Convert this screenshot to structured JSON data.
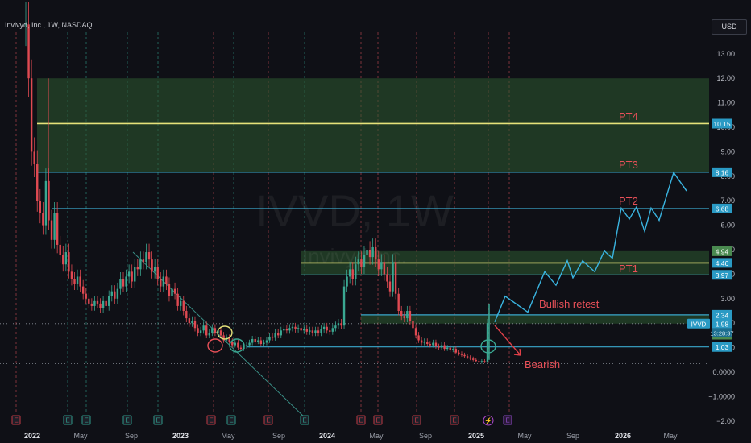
{
  "header": {
    "symbol_title": "Invivyd, Inc., 1W, NASDAQ",
    "currency": "USD"
  },
  "watermark": {
    "ticker": "IVVD, 1W",
    "company": "Invivyd Inc."
  },
  "colors": {
    "background": "#0f1016",
    "grid_v_red": "#c44a55",
    "grid_v_teal": "#2f9a8a",
    "up_candle": "#3aa892",
    "down_candle": "#e04a52",
    "zone_fill": "#2e5a32",
    "line_cyan": "#3aa8cc",
    "line_yellow": "#e6e27a",
    "projection": "#3ab4e0",
    "annotation_red": "#e85058",
    "arrow_red": "#e04048"
  },
  "chart_data": {
    "type": "candlestick",
    "title": "IVVD, 1W",
    "y_axis": {
      "ticks": [
        13.0,
        12.0,
        11.0,
        10.0,
        9.0,
        8.0,
        7.0,
        6.0,
        5.0,
        4.0,
        3.0,
        2.0,
        1.0,
        0.0,
        -1.0,
        -2.0
      ],
      "tick_labels": [
        "13.00",
        "12.00",
        "11.00",
        "10.00",
        "9.00",
        "8.00",
        "7.00",
        "6.00",
        "5.00",
        "4.00",
        "3.00",
        "2.00",
        "1.00",
        "0.0000",
        "−1.0000",
        "−2.00"
      ],
      "range": [
        -2.0,
        14.4
      ],
      "position": "right"
    },
    "x_axis": {
      "labels": [
        "2022",
        "May",
        "Sep",
        "2023",
        "May",
        "Sep",
        "2024",
        "May",
        "Sep",
        "2025",
        "May",
        "Sep",
        "2026",
        "May"
      ],
      "bold_labels": [
        "2022",
        "2023",
        "2024",
        "2025",
        "2026"
      ]
    },
    "price_badges": [
      {
        "value": 10.15,
        "label": "10.15"
      },
      {
        "value": 8.16,
        "label": "8.16"
      },
      {
        "value": 6.68,
        "label": "6.68"
      },
      {
        "value": 4.94,
        "label": "4.94"
      },
      {
        "value": 4.46,
        "label": "4.46"
      },
      {
        "value": 3.97,
        "label": "3.97"
      },
      {
        "value": 2.34,
        "label": "2.34"
      },
      {
        "value": 1.98,
        "label": "1.98"
      },
      {
        "value": 1.53,
        "label": "1.53"
      },
      {
        "value": 1.03,
        "label": "1.03"
      }
    ],
    "last_price": {
      "value": 1.98,
      "label": "1.98",
      "ticker": "IVVD",
      "countdown": "13:28:37"
    },
    "horizontal_lines": [
      {
        "value": 10.15,
        "color": "yellow"
      },
      {
        "value": 8.16,
        "color": "cyan"
      },
      {
        "value": 6.68,
        "color": "cyan"
      },
      {
        "value": 4.46,
        "color": "yellow"
      },
      {
        "value": 3.97,
        "color": "cyan"
      },
      {
        "value": 2.34,
        "color": "cyan"
      },
      {
        "value": 1.03,
        "color": "cyan"
      }
    ],
    "zones": [
      {
        "from": 8.16,
        "to": 12.0
      },
      {
        "from": 3.97,
        "to": 4.94
      },
      {
        "from": 1.98,
        "to": 2.34
      }
    ],
    "annotations": [
      {
        "text": "PT4",
        "value": 10.15
      },
      {
        "text": "PT3",
        "value": 8.16
      },
      {
        "text": "PT2",
        "value": 6.68
      },
      {
        "text": "PT1",
        "value": 3.97
      },
      {
        "text": "Bullish retest",
        "value": 2.34
      },
      {
        "text": "Bearish",
        "value": 0.35
      }
    ],
    "projection_path": [
      2.05,
      3.1,
      2.45,
      4.1,
      3.55,
      4.55,
      3.85,
      4.55,
      4.1,
      4.95,
      4.65,
      6.7,
      6.25,
      6.75,
      5.75,
      6.7,
      6.2,
      8.15,
      7.4,
      7.6
    ],
    "projection_x_labels_span": [
      "2025",
      "May"
    ],
    "earnings_markers": {
      "red": [
        "2022",
        "2023 Apr",
        "2023 Jul",
        "2024 Jan",
        "2024 Apr",
        "2024 Aug",
        "2024 Nov"
      ],
      "teal": [
        "2022 Apr",
        "2022 May",
        "2022 Sep",
        "2022 Nov",
        "2023 May"
      ],
      "purple": [
        "2025 Feb",
        "2025 Mar"
      ],
      "label": "E"
    },
    "candles_weekly_approx": {
      "period": "2022-2025 weekly",
      "start_high": 14.4,
      "lows": [
        1.5,
        1.0,
        0.95,
        0.35
      ],
      "notable": [
        {
          "label": "spike 2022",
          "value": 12.0
        },
        {
          "label": "2024 high",
          "value": 5.2
        },
        {
          "label": "2025 spike",
          "value": 2.8
        }
      ]
    },
    "grid": false,
    "legend": "none"
  }
}
